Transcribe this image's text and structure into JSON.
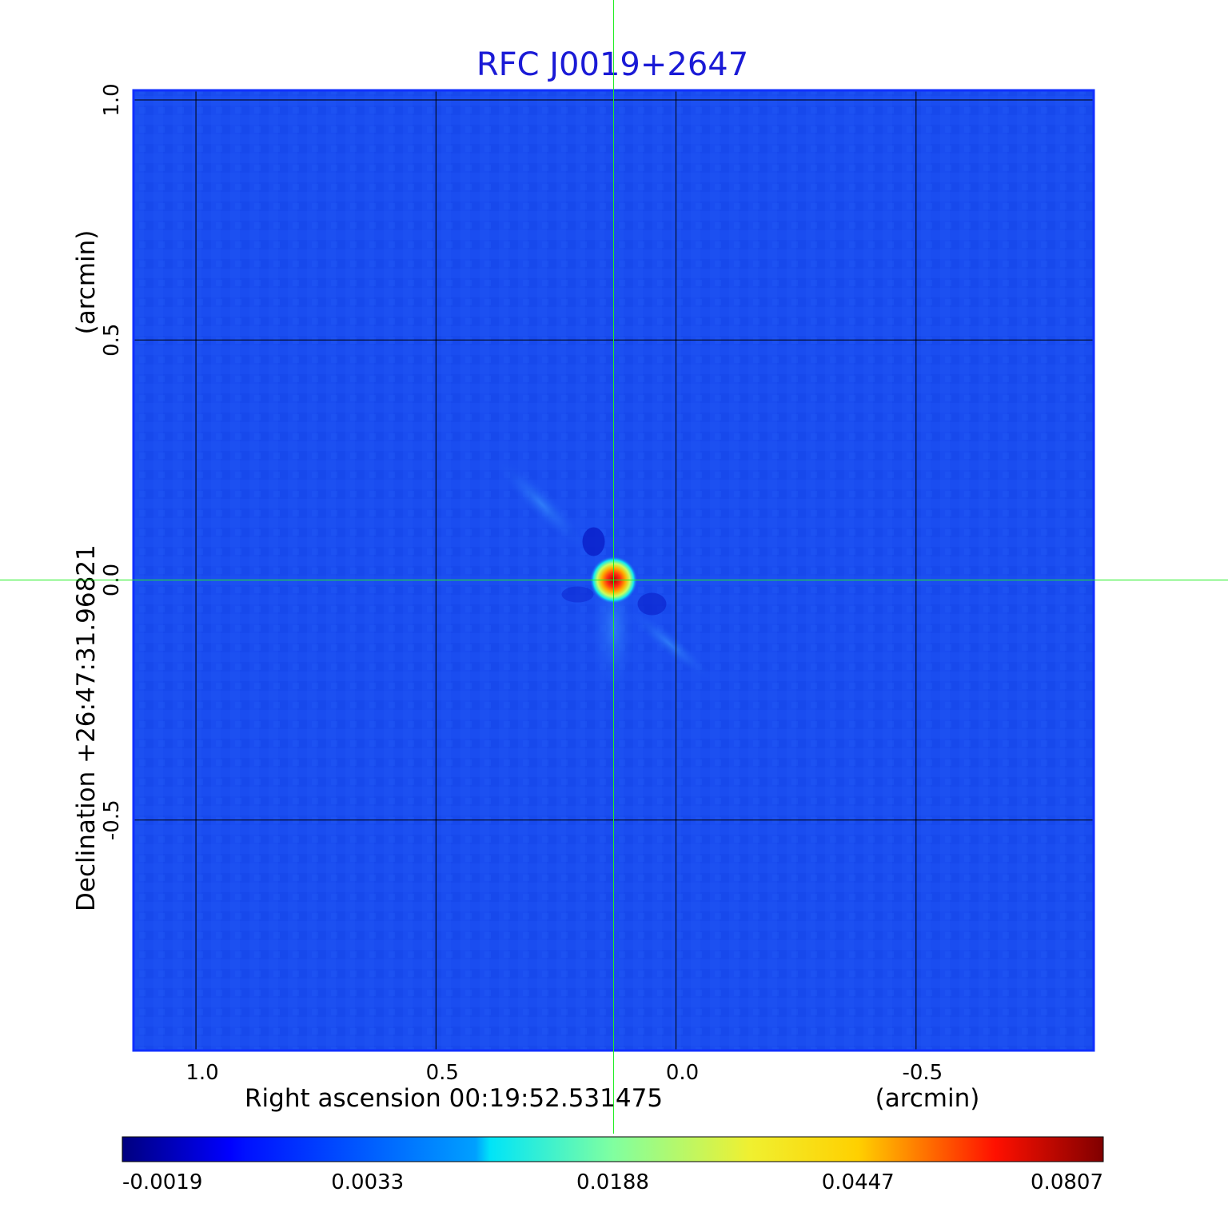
{
  "chart_data": {
    "type": "heatmap",
    "title": "RFC J0019+2647",
    "xlabel": "Right ascension  00:19:52.531475",
    "xunit": "(arcmin)",
    "ylabel": "Declination  +26:47:31.96821",
    "yunit": "(arcmin)",
    "xticks": [
      1.0,
      0.5,
      0.0,
      -0.5
    ],
    "xtick_labels": [
      "1.0",
      "0.5",
      "0.0",
      "-0.5"
    ],
    "yticks": [
      1.0,
      0.5,
      0.0,
      -0.5
    ],
    "ytick_labels": [
      "1.0",
      "0.5",
      "0.0",
      "-0.5"
    ],
    "xlim": [
      1.13,
      -0.87
    ],
    "ylim": [
      -0.98,
      1.02
    ],
    "grid": true,
    "colormap": "jet",
    "colorbar": {
      "ticks": [
        "-0.0019",
        "0.0033",
        "0.0188",
        "0.0447",
        "0.0807"
      ],
      "range": [
        -0.0019,
        0.0807
      ]
    },
    "source_peak": {
      "x": 0.13,
      "y": 0.0,
      "value": 0.0807
    },
    "crosshair": {
      "x": 0.13,
      "y": 0.0
    },
    "colors": {
      "background_field": "#1a4df0",
      "crosshair": "#22ee22",
      "frame": "#1030ff",
      "title": "#1a1ad6"
    }
  }
}
